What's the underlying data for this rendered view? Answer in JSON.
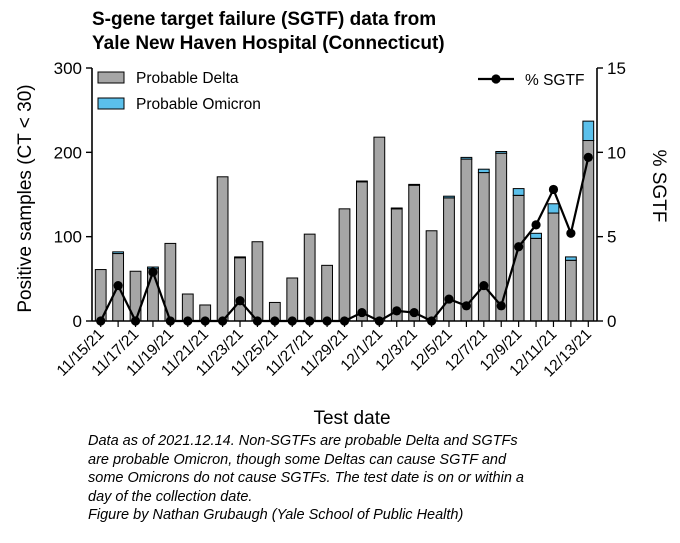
{
  "title_lines": [
    "S-gene target failure (SGTF) data from",
    "Yale New Haven Hospital (Connecticut)"
  ],
  "caption_lines": [
    "Data as of 2021.12.14. Non-SGTFs are probable Delta and SGTFs",
    "are probable Omicron, though some Deltas can cause SGTF and",
    "some Omicrons do not cause SGTFs. The test date is on or within a",
    "day of the collection date.",
    "Figure by Nathan Grubaugh (Yale School of Public Health)"
  ],
  "colors": {
    "delta": "#a6a6a6",
    "omicron": "#5bc0eb",
    "line": "#000000"
  },
  "chart_data": {
    "type": "bar",
    "title": "S-gene target failure (SGTF) data from Yale New Haven Hospital (Connecticut)",
    "xlabel": "Test date",
    "ylabel": "Positive samples (CT < 30)",
    "y2label": "% SGTF",
    "ylim": [
      0,
      300
    ],
    "y2lim": [
      0,
      15
    ],
    "yticks": [
      "0",
      "100",
      "200",
      "300"
    ],
    "y2ticks": [
      "0",
      "5",
      "10",
      "15"
    ],
    "categories": [
      "11/15/21",
      "11/16/21",
      "11/17/21",
      "11/18/21",
      "11/19/21",
      "11/20/21",
      "11/21/21",
      "11/22/21",
      "11/23/21",
      "11/24/21",
      "11/25/21",
      "11/26/21",
      "11/27/21",
      "11/28/21",
      "11/29/21",
      "11/30/21",
      "12/1/21",
      "12/2/21",
      "12/3/21",
      "12/4/21",
      "12/5/21",
      "12/6/21",
      "12/7/21",
      "12/8/21",
      "12/9/21",
      "12/10/21",
      "12/11/21",
      "12/12/21",
      "12/13/21"
    ],
    "x_tick_labels": [
      "11/15/21",
      "11/17/21",
      "11/19/21",
      "11/21/21",
      "11/23/21",
      "11/25/21",
      "11/27/21",
      "11/29/21",
      "12/1/21",
      "12/3/21",
      "12/5/21",
      "12/7/21",
      "12/9/21",
      "12/11/21",
      "12/13/21"
    ],
    "series": [
      {
        "name": "Probable Delta",
        "axis": "left",
        "stack": true,
        "values": [
          61,
          80,
          59,
          62,
          92,
          32,
          19,
          171,
          75,
          94,
          22,
          51,
          103,
          66,
          133,
          165,
          218,
          133,
          161,
          107,
          146,
          192,
          176,
          199,
          149,
          98,
          128,
          72,
          214
        ]
      },
      {
        "name": "Probable Omicron",
        "axis": "left",
        "stack": true,
        "values": [
          0,
          2,
          0,
          2,
          0,
          0,
          0,
          0,
          1,
          0,
          0,
          0,
          0,
          0,
          0,
          1,
          0,
          1,
          1,
          0,
          2,
          2,
          4,
          2,
          8,
          6,
          11,
          4,
          23
        ]
      },
      {
        "name": "% SGTF",
        "axis": "right",
        "type": "line",
        "values": [
          0,
          2.1,
          0,
          2.9,
          0,
          0,
          0,
          0,
          1.2,
          0,
          0,
          0,
          0,
          0,
          0,
          0.5,
          0,
          0.6,
          0.5,
          0,
          1.3,
          0.9,
          2.1,
          0.9,
          4.4,
          5.7,
          7.8,
          5.2,
          9.7
        ]
      }
    ],
    "legend": [
      {
        "label": "Probable Delta",
        "placement": "top-left"
      },
      {
        "label": "Probable Omicron",
        "placement": "top-left"
      },
      {
        "label": "% SGTF",
        "placement": "top-right"
      }
    ]
  }
}
